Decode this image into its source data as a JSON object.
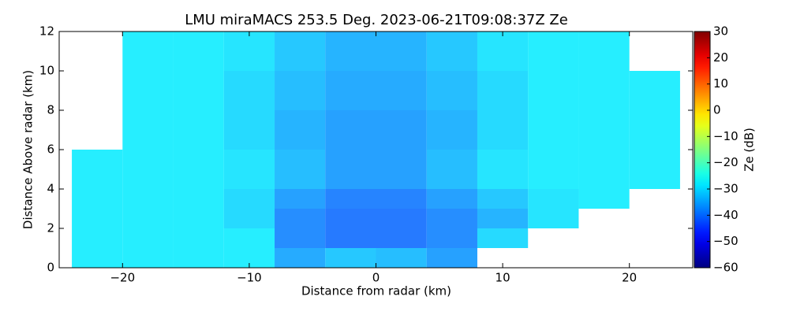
{
  "chart_data": {
    "type": "heatmap",
    "title": "LMU miraMACS 253.5 Deg. 2023-06-21T09:08:37Z  Ze",
    "xlabel": "Distance from radar (km)",
    "ylabel": "Distance Above radar  (km)",
    "colorbar_label": "Ze (dB)",
    "colormap": "jet",
    "xlim": [
      -25,
      25
    ],
    "ylim": [
      0,
      12
    ],
    "xticks": [
      {
        "value": -20,
        "label": "−20"
      },
      {
        "value": -10,
        "label": "−10"
      },
      0,
      10,
      20
    ],
    "yticks": [
      0,
      2,
      4,
      6,
      8,
      10,
      12
    ],
    "clim": [
      -60,
      30
    ],
    "cticks": [
      {
        "value": -60,
        "label": "−60"
      },
      {
        "value": -50,
        "label": "−50"
      },
      {
        "value": -40,
        "label": "−40"
      },
      {
        "value": -30,
        "label": "−30"
      },
      {
        "value": -20,
        "label": "−20"
      },
      {
        "value": -10,
        "label": "−10"
      },
      0,
      10,
      20,
      30
    ],
    "x_edges": [
      -24,
      -20,
      -16,
      -12,
      -8,
      -4,
      0,
      4,
      8,
      12,
      16,
      20,
      24
    ],
    "y_edges": [
      0,
      1,
      2,
      3,
      4,
      6,
      8,
      10,
      12
    ],
    "z": [
      [
        -28,
        -28,
        -28,
        -28,
        -35,
        -32,
        -33,
        -36,
        null,
        null,
        null,
        null
      ],
      [
        -28,
        -28,
        -28,
        -28,
        -38,
        -40,
        -40,
        -38,
        -30,
        null,
        null,
        null
      ],
      [
        -28,
        -28,
        -28,
        -30,
        -38,
        -40,
        -40,
        -38,
        -34,
        -29,
        null,
        null
      ],
      [
        -28,
        -28,
        -28,
        -30,
        -36,
        -39,
        -39,
        -36,
        -32,
        -29,
        -28,
        null
      ],
      [
        -28,
        -28,
        -28,
        -29,
        -33,
        -36,
        -36,
        -33,
        -29,
        -28,
        -28,
        -28
      ],
      [
        null,
        -28,
        -28,
        -30,
        -34,
        -36,
        -36,
        -34,
        -30,
        -28,
        -28,
        -28
      ],
      [
        null,
        -28,
        -28,
        -30,
        -33,
        -35,
        -35,
        -33,
        -30,
        -28,
        -28,
        -28
      ],
      [
        null,
        -28,
        -28,
        -29,
        -32,
        -34,
        -34,
        -32,
        -29,
        -28,
        -28,
        null
      ]
    ]
  }
}
